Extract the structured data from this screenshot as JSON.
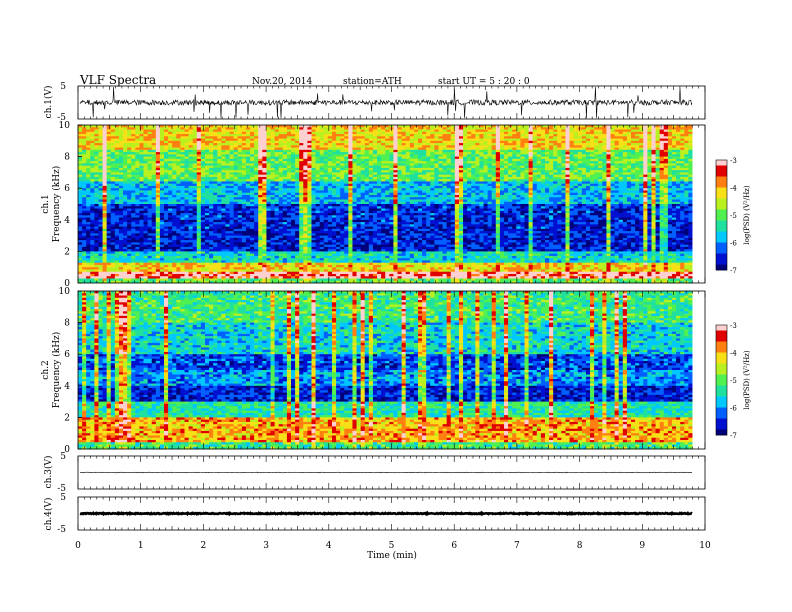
{
  "header": {
    "title": "VLF  Spectra",
    "date": "Nov.20, 2014",
    "station": "station=ATH",
    "start": "start  UT =   5  : 20 : 0"
  },
  "colors": {
    "spectro_stops": [
      "#00007a",
      "#0010d0",
      "#0060ff",
      "#00c8ff",
      "#20e0a0",
      "#50f050",
      "#b8f020",
      "#f8e018",
      "#ff8010",
      "#e00000",
      "#ffd0d0"
    ],
    "trace": "#000000",
    "frame": "#000000"
  },
  "chart_data": [
    {
      "type": "line",
      "panel": "ch1-waveform",
      "ylabel": "ch.1(V)",
      "ylim": [
        -5,
        5
      ],
      "yticks": [
        5,
        -5
      ],
      "baseline": 0,
      "noise_amplitude": 0.8,
      "note": "noisy waveform with frequent spikes"
    },
    {
      "type": "heatmap",
      "panel": "ch1-spectrogram",
      "ylabel": "Frequency (kHz)",
      "channel_label": "ch.1",
      "ylim": [
        0,
        10
      ],
      "yticks": [
        "0",
        "2",
        "4",
        "6",
        "8",
        "10"
      ],
      "x_end_min": 9.8,
      "band_levels": [
        {
          "f": [
            0,
            0.3
          ],
          "level": -5.0
        },
        {
          "f": [
            0.3,
            0.7
          ],
          "level": -3.2
        },
        {
          "f": [
            0.7,
            1.3
          ],
          "level": -4.2
        },
        {
          "f": [
            1.3,
            2.0
          ],
          "level": -5.6
        },
        {
          "f": [
            2.0,
            3.5
          ],
          "level": -6.6
        },
        {
          "f": [
            3.5,
            5.0
          ],
          "level": -6.5
        },
        {
          "f": [
            5.0,
            6.5
          ],
          "level": -5.8
        },
        {
          "f": [
            6.5,
            8.5
          ],
          "level": -5.0
        },
        {
          "f": [
            8.5,
            10
          ],
          "level": -4.2
        }
      ],
      "colorbar": {
        "label": "log(PSD) (V²/Hz)",
        "range": [
          -7,
          -3
        ],
        "ticks": [
          "-3",
          "-4",
          "-5",
          "-6",
          "-7"
        ]
      }
    },
    {
      "type": "heatmap",
      "panel": "ch2-spectrogram",
      "ylabel": "Frequency (kHz)",
      "channel_label": "ch.2",
      "ylim": [
        0,
        10
      ],
      "yticks": [
        "0",
        "2",
        "4",
        "6",
        "8",
        "10"
      ],
      "x_end_min": 9.8,
      "band_levels": [
        {
          "f": [
            0,
            0.4
          ],
          "level": -5.2
        },
        {
          "f": [
            0.4,
            2.0
          ],
          "level": -4.0
        },
        {
          "f": [
            2.0,
            3.0
          ],
          "level": -5.4
        },
        {
          "f": [
            3.0,
            4.0
          ],
          "level": -6.6
        },
        {
          "f": [
            4.0,
            5.0
          ],
          "level": -6.0
        },
        {
          "f": [
            5.0,
            6.0
          ],
          "level": -6.4
        },
        {
          "f": [
            6.0,
            8.0
          ],
          "level": -5.6
        },
        {
          "f": [
            8.0,
            10
          ],
          "level": -5.2
        }
      ],
      "colorbar": {
        "label": "log(PSD) (V²/Hz)",
        "range": [
          -7,
          -3
        ],
        "ticks": [
          "-3",
          "-4",
          "-5",
          "-6",
          "-7"
        ]
      }
    },
    {
      "type": "line",
      "panel": "ch3-waveform",
      "ylabel": "ch.3(V)",
      "ylim": [
        -5,
        5
      ],
      "yticks": [
        5,
        -5
      ],
      "baseline": 0,
      "noise_amplitude": 0.1
    },
    {
      "type": "line",
      "panel": "ch4-waveform",
      "ylabel": "ch.4(V)",
      "ylim": [
        -5,
        5
      ],
      "yticks": [
        5,
        -5
      ],
      "baseline": 0,
      "noise_amplitude": 0.15
    }
  ],
  "xaxis": {
    "label": "Time  (min)",
    "ticks": [
      "0",
      "1",
      "2",
      "3",
      "4",
      "5",
      "6",
      "7",
      "8",
      "9",
      "10"
    ],
    "range": [
      0,
      10
    ]
  }
}
